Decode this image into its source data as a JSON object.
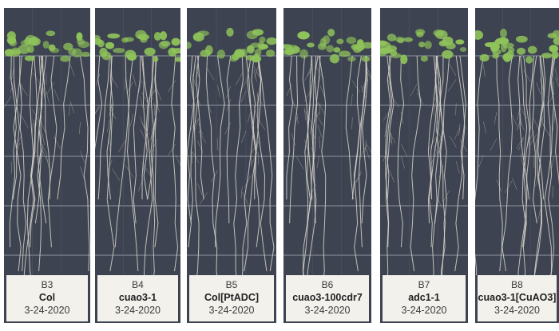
{
  "plates": [
    {
      "id": "B3",
      "genotype": "Col",
      "date": "3-24-2020"
    },
    {
      "id": "B4",
      "genotype": "cuao3-1",
      "date": "3-24-2020"
    },
    {
      "id": "B5",
      "genotype": "Col[PtADC]",
      "date": "3-24-2020"
    },
    {
      "id": "B6",
      "genotype": "cuao3-100cdr7",
      "date": "3-24-2020"
    },
    {
      "id": "B7",
      "genotype": "adc1-1",
      "date": "3-24-2020"
    },
    {
      "id": "B8",
      "genotype": "cuao3-1[CuAO3]",
      "date": "3-24-2020"
    }
  ],
  "colors": {
    "plate": "#3d4350",
    "leaf": "#8fc35a",
    "root": "#d9d6cc",
    "label": "#f2f1ec"
  }
}
